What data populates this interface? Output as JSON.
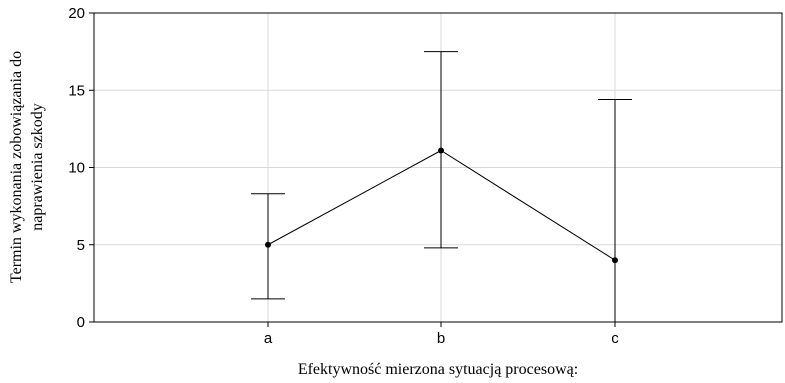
{
  "chart_data": {
    "type": "line",
    "categories": [
      "a",
      "b",
      "c"
    ],
    "series": [
      {
        "values": [
          5.0,
          11.1,
          4.0
        ],
        "error_low": [
          1.5,
          4.8,
          0.0
        ],
        "error_high": [
          8.3,
          17.5,
          14.4
        ]
      }
    ],
    "xlabel": "Efektywność mierzona sytuacją procesową:",
    "ylabel_lines": [
      "Termin wykonania zobowiązania do",
      "naprawienia szkody"
    ],
    "ylim": [
      0,
      20
    ],
    "yticks": [
      0,
      5,
      10,
      15,
      20
    ],
    "grid": true,
    "legend": "none",
    "colors": {
      "line": "#000000",
      "grid": "#d9d9d9",
      "axis": "#000000"
    }
  }
}
